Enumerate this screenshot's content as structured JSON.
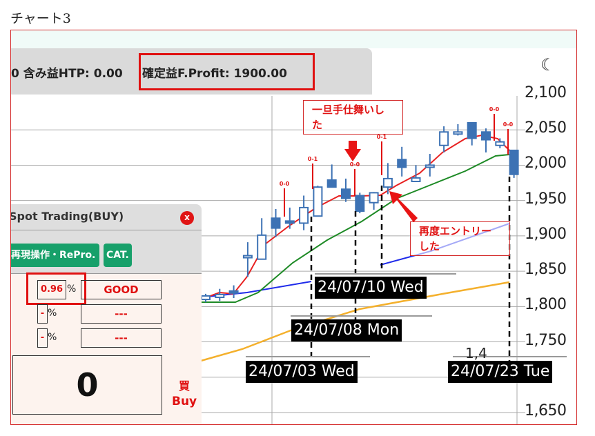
{
  "page_title": "チャート3",
  "header": {
    "htp_text": "0 含み益HTP: 0.00",
    "profit_text": "確定益F.Profit: 1900.00",
    "theme_icon": "moon-icon"
  },
  "chart": {
    "y_ticks": [
      "2,100",
      "2,050",
      "2,000",
      "1,950",
      "1,900",
      "1,850",
      "1,800",
      "1,750",
      "1,650"
    ],
    "y_tick_values": [
      2100,
      2050,
      2000,
      1950,
      1900,
      1850,
      1800,
      1750,
      1650
    ],
    "overlap_fragment": "1,4",
    "candles": [
      [
        1810,
        1818,
        1806,
        1815
      ],
      [
        1813,
        1825,
        1808,
        1817
      ],
      [
        1822,
        1830,
        1812,
        1820
      ],
      [
        1870,
        1891,
        1842,
        1872
      ],
      [
        1867,
        1925,
        1867,
        1901
      ],
      [
        1925,
        1938,
        1898,
        1911
      ],
      [
        1921,
        1940,
        1910,
        1918
      ],
      [
        1918,
        1957,
        1908,
        1940
      ],
      [
        1928,
        1971,
        1928,
        1969
      ],
      [
        1979,
        2001,
        1969,
        1969
      ],
      [
        1966,
        1981,
        1948,
        1953
      ],
      [
        1957,
        1961,
        1932,
        1935
      ],
      [
        1947,
        1962,
        1937,
        1961
      ],
      [
        1969,
        2003,
        1959,
        1981
      ],
      [
        2008,
        2026,
        1984,
        1997
      ],
      [
        1977,
        2000,
        1976,
        1982
      ],
      [
        1997,
        2016,
        1984,
        2000
      ],
      [
        2028,
        2055,
        2018,
        2047
      ],
      [
        2044,
        2058,
        2042,
        2047
      ],
      [
        2060,
        2060,
        2028,
        2038
      ],
      [
        2047,
        2052,
        2018,
        2036
      ],
      [
        2028,
        2038,
        2024,
        2033
      ],
      [
        2021,
        2021,
        1982,
        1987
      ]
    ],
    "candle_up_color": "#ffffff",
    "candle_color": "#3d72b4",
    "signals": [
      "0-0",
      "0-1",
      "0-0",
      "0-1",
      "0-0",
      "0-0"
    ],
    "date_labels": [
      "24/07/10 Wed",
      "24/07/08 Mon",
      "24/07/03 Wed",
      "24/07/23 Tue"
    ],
    "notes": {
      "exit": "一旦手仕舞いした",
      "reentry": "再度エントリーした"
    }
  },
  "spot_panel": {
    "title": "Spot Trading(BUY)",
    "close_label": "x",
    "buttons": [
      "再現操作・RePro.",
      "CAT."
    ],
    "rows": [
      {
        "pct": "0.96",
        "unit": "%",
        "result": "GOOD"
      },
      {
        "pct": "-",
        "unit": "%",
        "result": "---"
      },
      {
        "pct": "-",
        "unit": "%",
        "result": "---"
      }
    ],
    "quantity": "0",
    "side_jp": "買",
    "side_en": "Buy"
  }
}
